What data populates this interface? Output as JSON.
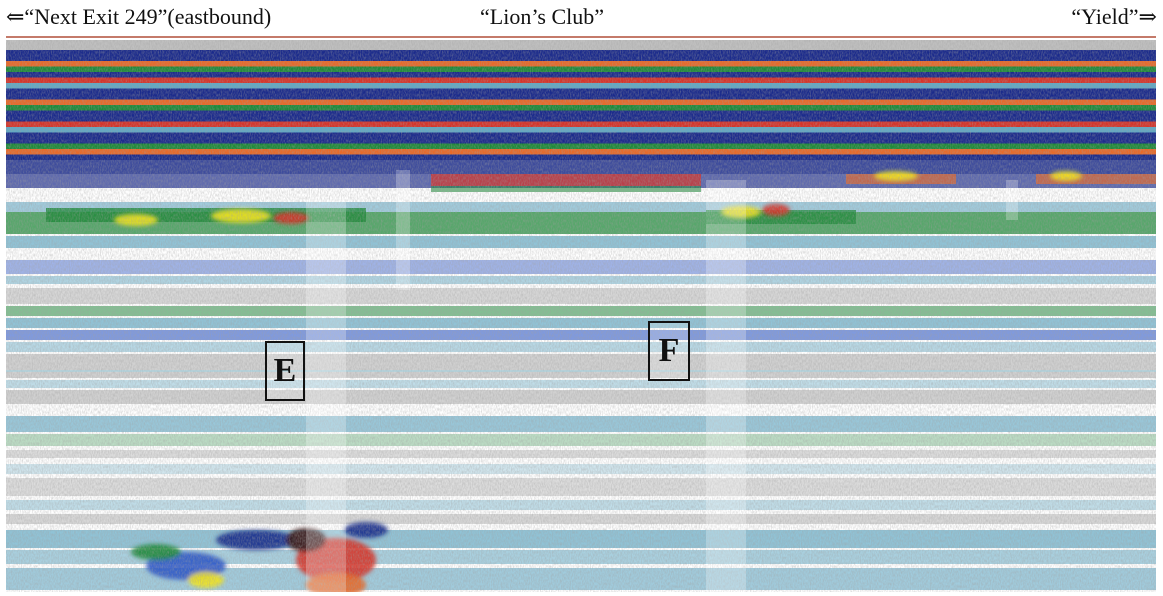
{
  "header": {
    "left_label": "⇐“Next Exit 249”(eastbound)",
    "center_label": "“Lion’s Club”",
    "right_label": "“Yield”⇒"
  },
  "markers": [
    {
      "id": "marker-e",
      "label": "E"
    },
    {
      "id": "marker-f",
      "label": "F"
    }
  ],
  "palette": {
    "navy": "#1b2b8c",
    "blue": "#2c57c8",
    "cyan": "#62a9c5",
    "green": "#1f8a3a",
    "yellow": "#f3e61c",
    "red": "#d6342a",
    "orange": "#e86a2a",
    "gray": "#8c8c8c",
    "rule": "#c47a6a"
  }
}
